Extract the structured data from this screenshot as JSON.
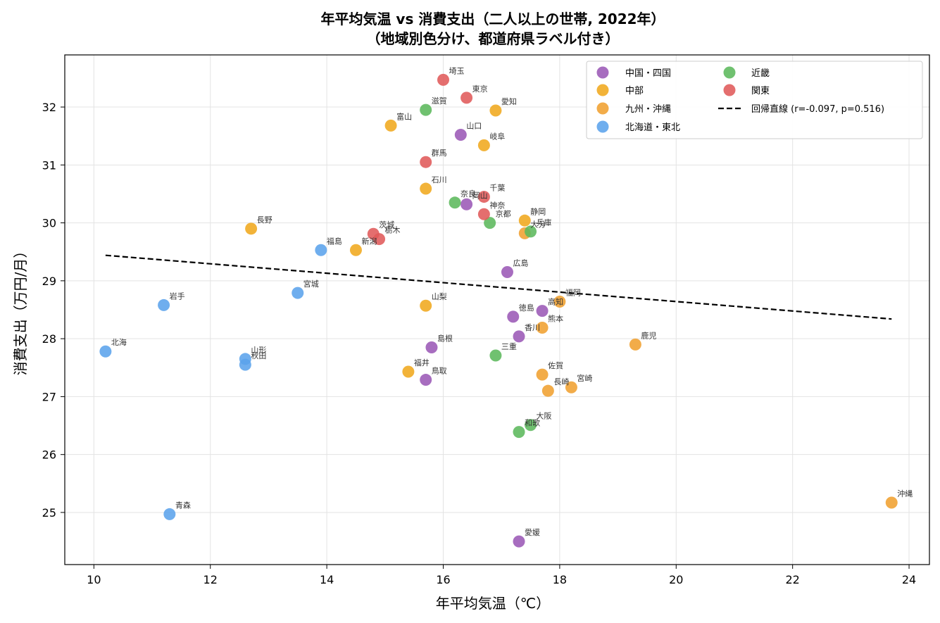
{
  "chart_data": {
    "type": "scatter",
    "title": "年平均気温 vs 消費支出（二人以上の世帯, 2022年）",
    "subtitle": "（地域別色分け、都道府県ラベル付き）",
    "xlabel": "年平均気温（℃）",
    "ylabel": "消費支出（万円/月）",
    "xlim": [
      9.5,
      24.35
    ],
    "ylim": [
      24.1,
      32.9
    ],
    "xticks": [
      10,
      12,
      14,
      16,
      18,
      20,
      22,
      24
    ],
    "yticks": [
      25,
      26,
      27,
      28,
      29,
      30,
      31,
      32
    ],
    "grid": true,
    "legend_position": "top-right",
    "series": [
      {
        "name": "中国・四国",
        "color": "#9b59b6",
        "points": [
          {
            "label": "山口",
            "x": 16.3,
            "y": 31.52
          },
          {
            "label": "岡山",
            "x": 16.4,
            "y": 30.32
          },
          {
            "label": "広島",
            "x": 17.1,
            "y": 29.15
          },
          {
            "label": "徳島",
            "x": 17.2,
            "y": 28.38
          },
          {
            "label": "高知",
            "x": 17.7,
            "y": 28.48
          },
          {
            "label": "香川",
            "x": 17.3,
            "y": 28.04
          },
          {
            "label": "島根",
            "x": 15.8,
            "y": 27.85
          },
          {
            "label": "鳥取",
            "x": 15.7,
            "y": 27.29
          },
          {
            "label": "愛媛",
            "x": 17.3,
            "y": 24.5
          }
        ]
      },
      {
        "name": "中部",
        "color": "#f0a81e",
        "points": [
          {
            "label": "愛知",
            "x": 16.9,
            "y": 31.94
          },
          {
            "label": "富山",
            "x": 15.1,
            "y": 31.68
          },
          {
            "label": "岐阜",
            "x": 16.7,
            "y": 31.34
          },
          {
            "label": "石川",
            "x": 15.7,
            "y": 30.59
          },
          {
            "label": "静岡",
            "x": 17.4,
            "y": 30.04
          },
          {
            "label": "長野",
            "x": 12.7,
            "y": 29.9
          },
          {
            "label": "新潟",
            "x": 14.5,
            "y": 29.53
          },
          {
            "label": "山梨",
            "x": 15.7,
            "y": 28.57
          },
          {
            "label": "福井",
            "x": 15.4,
            "y": 27.43
          }
        ]
      },
      {
        "name": "九州・沖縄",
        "color": "#f0a030",
        "points": [
          {
            "label": "大分",
            "x": 17.4,
            "y": 29.82
          },
          {
            "label": "福岡",
            "x": 18.0,
            "y": 28.64
          },
          {
            "label": "熊本",
            "x": 17.7,
            "y": 28.19
          },
          {
            "label": "鹿児",
            "x": 19.3,
            "y": 27.9
          },
          {
            "label": "佐賀",
            "x": 17.7,
            "y": 27.38
          },
          {
            "label": "宮崎",
            "x": 18.2,
            "y": 27.16
          },
          {
            "label": "長崎",
            "x": 17.8,
            "y": 27.1
          },
          {
            "label": "沖縄",
            "x": 23.7,
            "y": 25.17
          }
        ]
      },
      {
        "name": "北海道・東北",
        "color": "#5ba3ec",
        "points": [
          {
            "label": "福島",
            "x": 13.9,
            "y": 29.53
          },
          {
            "label": "宮城",
            "x": 13.5,
            "y": 28.79
          },
          {
            "label": "岩手",
            "x": 11.2,
            "y": 28.58
          },
          {
            "label": "北海",
            "x": 10.2,
            "y": 27.78
          },
          {
            "label": "山形",
            "x": 12.6,
            "y": 27.65
          },
          {
            "label": "秋田",
            "x": 12.6,
            "y": 27.55
          },
          {
            "label": "青森",
            "x": 11.3,
            "y": 24.97
          }
        ]
      },
      {
        "name": "近畿",
        "color": "#5cb85c",
        "points": [
          {
            "label": "滋賀",
            "x": 15.7,
            "y": 31.95
          },
          {
            "label": "奈良",
            "x": 16.2,
            "y": 30.35
          },
          {
            "label": "京都",
            "x": 16.8,
            "y": 30.0
          },
          {
            "label": "兵庫",
            "x": 17.5,
            "y": 29.85
          },
          {
            "label": "三重",
            "x": 16.9,
            "y": 27.71
          },
          {
            "label": "大阪",
            "x": 17.5,
            "y": 26.51
          },
          {
            "label": "和歌",
            "x": 17.3,
            "y": 26.39
          }
        ]
      },
      {
        "name": "関東",
        "color": "#e05a5a",
        "points": [
          {
            "label": "埼玉",
            "x": 16.0,
            "y": 32.47
          },
          {
            "label": "東京",
            "x": 16.4,
            "y": 32.16
          },
          {
            "label": "群馬",
            "x": 15.7,
            "y": 31.05
          },
          {
            "label": "千葉",
            "x": 16.7,
            "y": 30.45
          },
          {
            "label": "神奈",
            "x": 16.7,
            "y": 30.15
          },
          {
            "label": "茨城",
            "x": 14.8,
            "y": 29.81
          },
          {
            "label": "栃木",
            "x": 14.9,
            "y": 29.72
          }
        ]
      }
    ],
    "regression": {
      "name": "回帰直線 (r=-0.097, p=0.516)",
      "color": "#000000",
      "x": [
        10.2,
        23.7
      ],
      "y": [
        29.44,
        28.34
      ]
    }
  }
}
